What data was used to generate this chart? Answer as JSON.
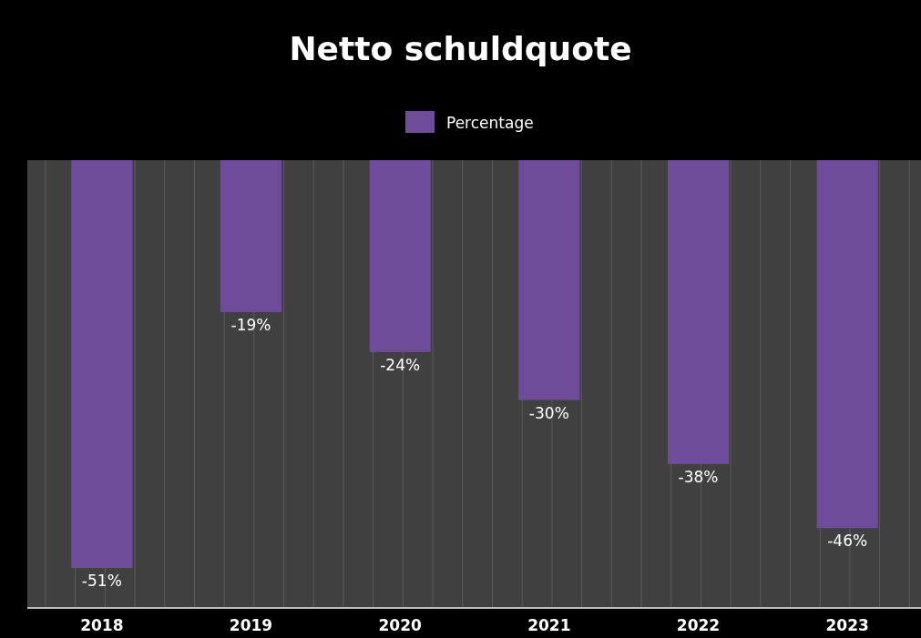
{
  "chart_data": {
    "type": "bar",
    "title": "Netto schuldquote",
    "categories": [
      "2018",
      "2019",
      "2020",
      "2021",
      "2022",
      "2023"
    ],
    "series": [
      {
        "name": "Percentage",
        "color": "#6e4c9a",
        "values": [
          -51,
          -19,
          -24,
          -30,
          -38,
          -46
        ],
        "value_labels": [
          "-51%",
          "-19%",
          "-24%",
          "-30%",
          "-38%",
          "-46%"
        ]
      }
    ],
    "ylim": [
      -56,
      0
    ],
    "tick_labels": "x",
    "grid": "x",
    "legend": "top"
  }
}
